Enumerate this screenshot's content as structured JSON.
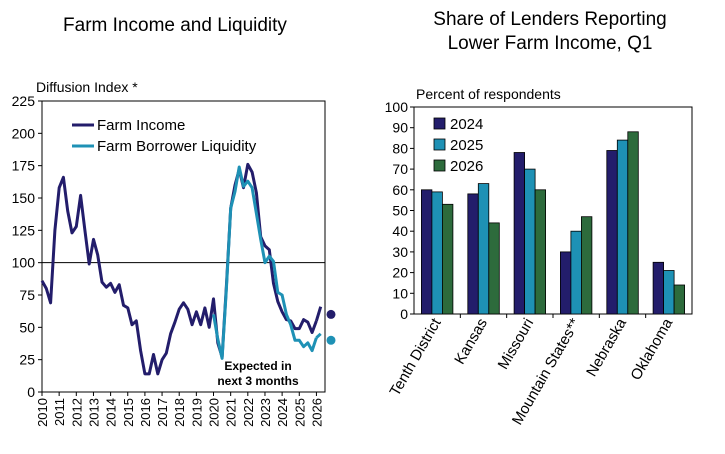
{
  "chart_data": [
    {
      "type": "line",
      "title": "Farm Income and Liquidity",
      "ylabel": "Diffusion Index *",
      "ylim": [
        0,
        225
      ],
      "yticks": [
        0,
        25,
        50,
        75,
        100,
        125,
        150,
        175,
        200,
        225
      ],
      "xlim": [
        2010,
        2026.5
      ],
      "xticks": [
        "2010",
        "2011",
        "2012",
        "2013",
        "2014",
        "2015",
        "2016",
        "2017",
        "2018",
        "2019",
        "2020",
        "2021",
        "2022",
        "2023",
        "2024",
        "2025",
        "2026"
      ],
      "reference_line": 100,
      "legend": "top-left",
      "annotation": [
        "Expected in",
        "next 3 months"
      ],
      "series": [
        {
          "name": "Farm Income",
          "color": "#231d6b",
          "x": [
            2010.0,
            2010.25,
            2010.5,
            2010.75,
            2011.0,
            2011.25,
            2011.5,
            2011.75,
            2012.0,
            2012.25,
            2012.5,
            2012.75,
            2013.0,
            2013.25,
            2013.5,
            2013.75,
            2014.0,
            2014.25,
            2014.5,
            2014.75,
            2015.0,
            2015.25,
            2015.5,
            2015.75,
            2016.0,
            2016.25,
            2016.5,
            2016.75,
            2017.0,
            2017.25,
            2017.5,
            2017.75,
            2018.0,
            2018.25,
            2018.5,
            2018.75,
            2019.0,
            2019.25,
            2019.5,
            2019.75,
            2020.0,
            2020.25,
            2020.5,
            2020.75,
            2021.0,
            2021.25,
            2021.5,
            2021.75,
            2022.0,
            2022.25,
            2022.5,
            2022.75,
            2023.0,
            2023.25,
            2023.5,
            2023.75,
            2024.0,
            2024.25,
            2024.5,
            2024.75,
            2025.0,
            2025.25,
            2025.5,
            2025.75,
            2026.0
          ],
          "y": [
            86,
            80,
            69,
            125,
            158,
            166,
            140,
            123,
            128,
            152,
            125,
            99,
            118,
            106,
            85,
            81,
            84,
            77,
            83,
            67,
            65,
            52,
            55,
            32,
            14,
            14,
            29,
            14,
            25,
            30,
            45,
            54,
            64,
            69,
            64,
            52,
            62,
            52,
            65,
            50,
            72,
            38,
            27,
            82,
            142,
            160,
            172,
            158,
            176,
            170,
            154,
            120,
            113,
            110,
            84,
            70,
            62,
            56,
            55,
            49,
            49,
            56,
            54,
            46,
            55
          ]
        },
        {
          "name": "Farm Borrower Liquidity",
          "color": "#1e91b5",
          "x": [
            2020.0,
            2020.25,
            2020.5,
            2020.75,
            2021.0,
            2021.25,
            2021.5,
            2021.75,
            2022.0,
            2022.25,
            2022.5,
            2022.75,
            2023.0,
            2023.25,
            2023.5,
            2023.75,
            2024.0,
            2024.25,
            2024.5,
            2024.75,
            2025.0,
            2025.25,
            2025.5,
            2025.75,
            2026.0
          ],
          "y": [
            60,
            41,
            26,
            80,
            142,
            155,
            174,
            159,
            163,
            158,
            138,
            118,
            100,
            105,
            101,
            77,
            75,
            60,
            52,
            40,
            40,
            35,
            38,
            32,
            42
          ]
        }
      ],
      "expected": [
        {
          "name": "Farm Income",
          "x": 2026.25,
          "y": 66,
          "dot": 60
        },
        {
          "name": "Farm Borrower Liquidity",
          "x": 2026.25,
          "y": 45,
          "dot": 40
        }
      ]
    },
    {
      "type": "bar",
      "title": "Share of Lenders Reporting Lower Farm Income, Q1",
      "title_lines": [
        "Share of Lenders Reporting",
        "Lower Farm Income, Q1"
      ],
      "ylabel": "Percent of respondents",
      "ylim": [
        0,
        100
      ],
      "yticks": [
        0,
        10,
        20,
        30,
        40,
        50,
        60,
        70,
        80,
        90,
        100
      ],
      "categories": [
        "Tenth District",
        "Kansas",
        "Missouri",
        "Mountain States**",
        "Nebraska",
        "Oklahoma"
      ],
      "legend": "top-left",
      "series": [
        {
          "name": "2024",
          "color": "#231d6b",
          "values": [
            60,
            58,
            78,
            30,
            79,
            25
          ]
        },
        {
          "name": "2025",
          "color": "#1e91b5",
          "values": [
            59,
            63,
            70,
            40,
            84,
            21
          ]
        },
        {
          "name": "2026",
          "color": "#2d6b3c",
          "values": [
            53,
            44,
            60,
            47,
            88,
            14
          ]
        }
      ]
    }
  ]
}
